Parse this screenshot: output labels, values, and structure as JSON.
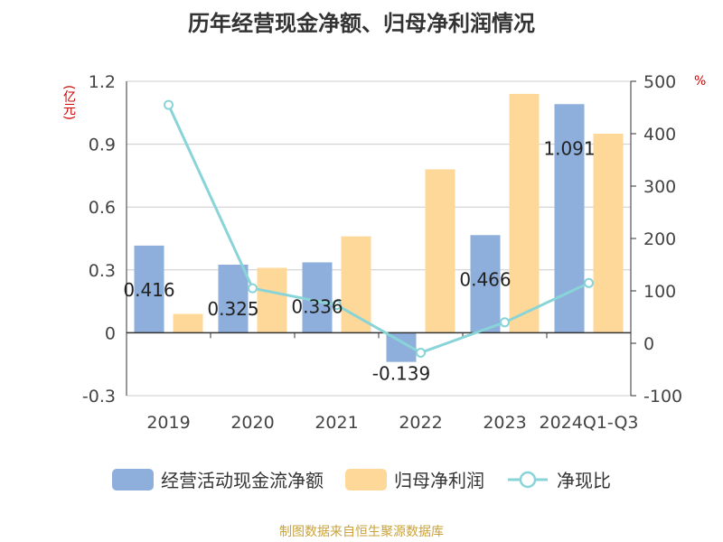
{
  "title": "历年经营现金净额、归母净利润情况",
  "left_unit": "(亿元)",
  "right_unit": "%",
  "source": "制图数据来自恒生聚源数据库",
  "colors": {
    "cash_flow": "#8eafdb",
    "net_profit": "#fdd898",
    "ratio": "#88d4d8",
    "grid": "#cccccc",
    "axis": "#333333"
  },
  "chart_data": {
    "type": "bar",
    "title": "历年经营现金净额、归母净利润情况",
    "categories": [
      "2019",
      "2020",
      "2021",
      "2022",
      "2023",
      "2024Q1-Q3"
    ],
    "series": [
      {
        "name": "经营活动现金流净额",
        "type": "bar",
        "axis": "left",
        "values": [
          0.416,
          0.325,
          0.336,
          -0.139,
          0.466,
          1.091
        ],
        "labels": [
          "0.416",
          "0.325",
          "0.336",
          "-0.139",
          "0.466",
          "1.091"
        ]
      },
      {
        "name": "归母净利润",
        "type": "bar",
        "axis": "left",
        "values": [
          0.09,
          0.31,
          0.46,
          0.78,
          1.14,
          0.95
        ]
      },
      {
        "name": "净现比",
        "type": "line",
        "axis": "right",
        "values": [
          455,
          105,
          73,
          -18,
          40,
          115
        ]
      }
    ],
    "left_axis": {
      "label": "(亿元)",
      "ylim": [
        -0.3,
        1.2
      ],
      "ticks": [
        "-0.3",
        "0",
        "0.3",
        "0.6",
        "0.9",
        "1.2"
      ],
      "tick_values": [
        -0.3,
        0,
        0.3,
        0.6,
        0.9,
        1.2
      ]
    },
    "right_axis": {
      "label": "%",
      "ylim": [
        -100,
        500
      ],
      "ticks": [
        "-100",
        "0",
        "100",
        "200",
        "300",
        "400",
        "500"
      ],
      "tick_values": [
        -100,
        0,
        100,
        200,
        300,
        400,
        500
      ]
    },
    "grid": true,
    "legend": "bottom"
  }
}
